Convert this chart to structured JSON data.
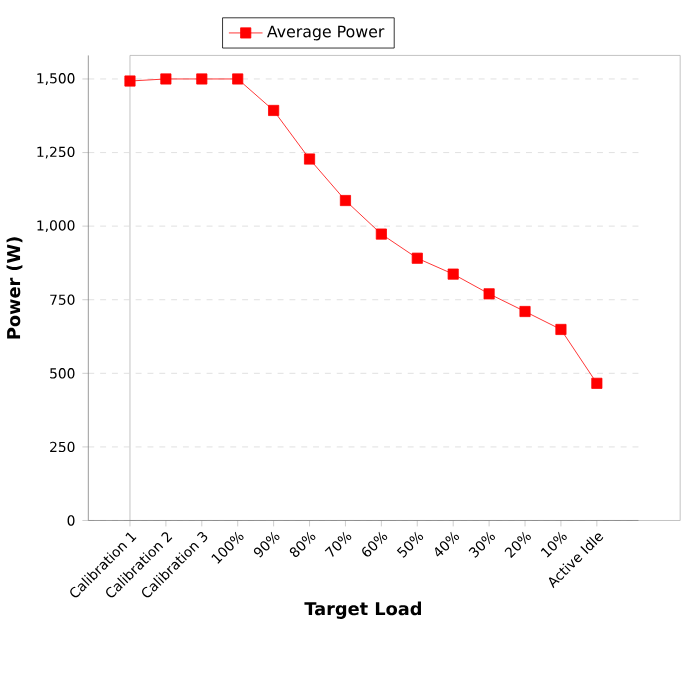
{
  "chart_data": {
    "type": "line",
    "xlabel": "Target Load",
    "ylabel": "Power (W)",
    "categories": [
      "Calibration 1",
      "Calibration 2",
      "Calibration 3",
      "100%",
      "90%",
      "80%",
      "70%",
      "60%",
      "50%",
      "40%",
      "30%",
      "20%",
      "10%",
      "Active Idle"
    ],
    "series": [
      {
        "name": "Average Power",
        "color": "#ff0000",
        "values": [
          1493,
          1500,
          1500,
          1500,
          1393,
          1228,
          1087,
          973,
          891,
          837,
          770,
          710,
          649,
          466
        ]
      }
    ],
    "ylim": [
      0,
      1580
    ],
    "yticks": [
      0,
      250,
      500,
      750,
      {
        "value": 1000,
        "label": "1,000"
      },
      {
        "value": 1250,
        "label": "1,250"
      },
      {
        "value": 1500,
        "label": "1,500"
      }
    ],
    "grid": "y",
    "legend": "top",
    "marker": "square",
    "line_style": "solid"
  }
}
